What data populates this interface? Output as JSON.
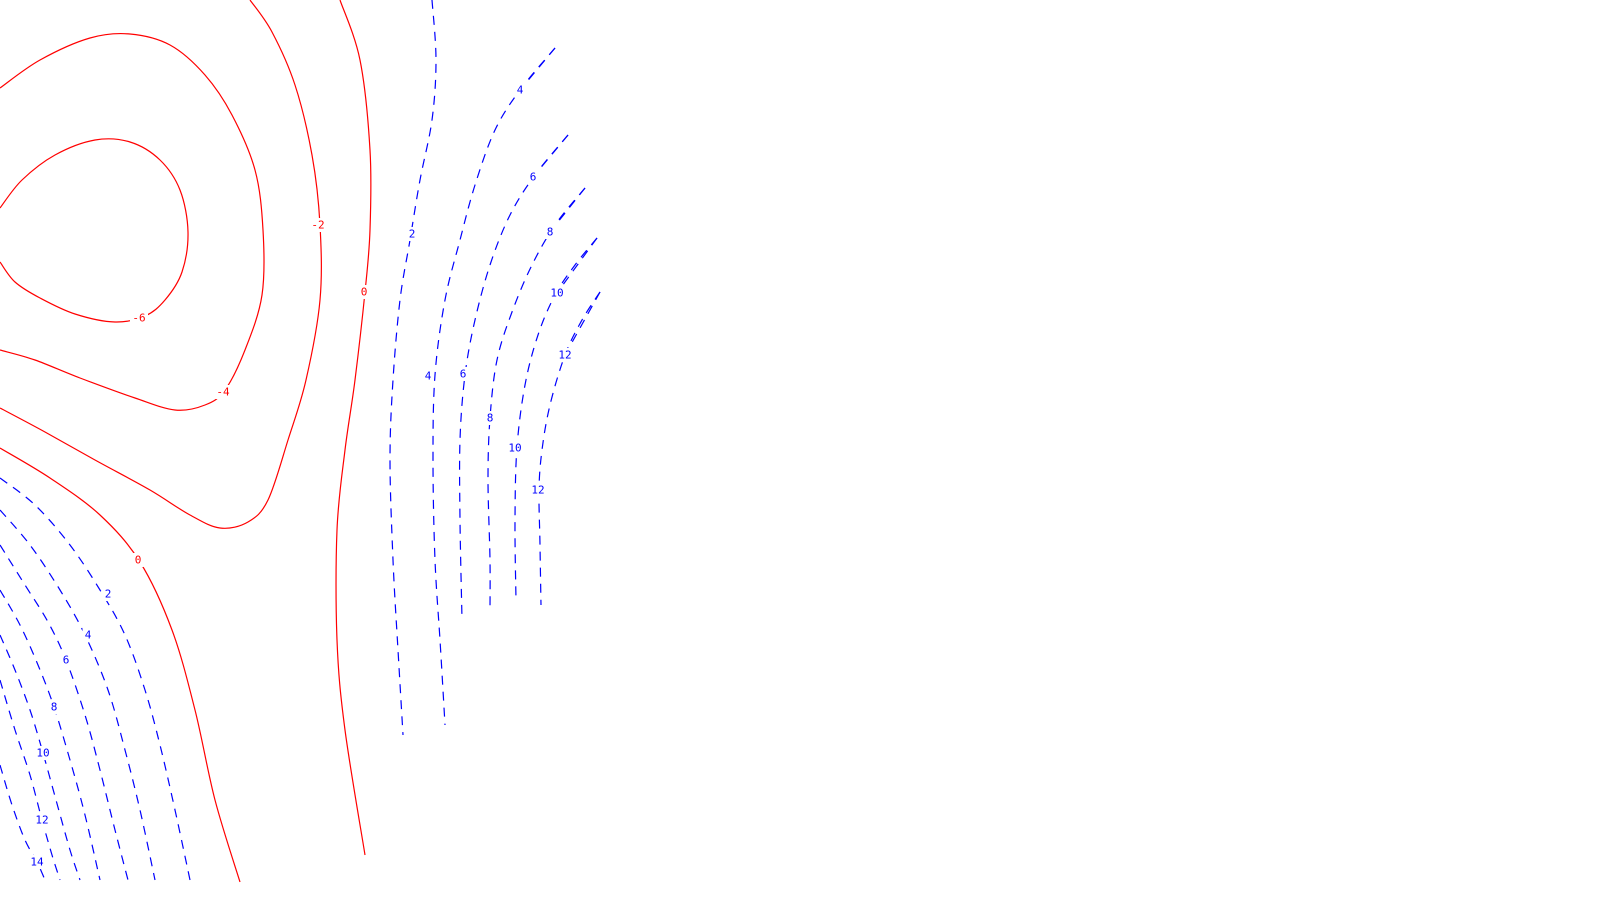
{
  "colors": {
    "negative": "#ff0000",
    "positive": "#0000ff",
    "background": "#ffffff"
  },
  "chart_data": {
    "type": "contour",
    "title": "",
    "xlabel": "",
    "ylabel": "",
    "grid": false,
    "legend": "none",
    "x_range": [
      0,
      1600
    ],
    "y_range": [
      0,
      900
    ],
    "contours": [
      {
        "level": -6,
        "label": "-6",
        "style": "solid",
        "color": "#ff0000",
        "points": [
          [
            0,
            208
          ],
          [
            22,
            180
          ],
          [
            55,
            155
          ],
          [
            95,
            140
          ],
          [
            130,
            142
          ],
          [
            160,
            160
          ],
          [
            180,
            190
          ],
          [
            188,
            232
          ],
          [
            182,
            272
          ],
          [
            165,
            300
          ],
          [
            145,
            316
          ],
          [
            115,
            322
          ],
          [
            75,
            314
          ],
          [
            40,
            298
          ],
          [
            15,
            282
          ],
          [
            0,
            262
          ]
        ],
        "label_at": [
          139,
          318
        ]
      },
      {
        "level": -4,
        "label": "-4",
        "style": "solid",
        "color": "#ff0000",
        "points": [
          [
            0,
            88
          ],
          [
            40,
            60
          ],
          [
            90,
            38
          ],
          [
            130,
            34
          ],
          [
            170,
            45
          ],
          [
            205,
            75
          ],
          [
            232,
            115
          ],
          [
            255,
            170
          ],
          [
            263,
            230
          ],
          [
            262,
            295
          ],
          [
            245,
            350
          ],
          [
            225,
            390
          ],
          [
            205,
            405
          ],
          [
            175,
            410
          ],
          [
            135,
            398
          ],
          [
            80,
            378
          ],
          [
            35,
            360
          ],
          [
            0,
            350
          ]
        ],
        "label_at": [
          223,
          392
        ]
      },
      {
        "level": -2,
        "label": "-2",
        "style": "solid",
        "color": "#ff0000",
        "points": [
          [
            250,
            0
          ],
          [
            272,
            32
          ],
          [
            295,
            85
          ],
          [
            312,
            155
          ],
          [
            320,
            225
          ],
          [
            320,
            300
          ],
          [
            306,
            380
          ],
          [
            288,
            440
          ],
          [
            268,
            500
          ],
          [
            248,
            522
          ],
          [
            220,
            528
          ],
          [
            190,
            515
          ],
          [
            150,
            490
          ],
          [
            95,
            460
          ],
          [
            45,
            432
          ],
          [
            0,
            408
          ]
        ],
        "label_at": [
          318,
          225
        ]
      },
      {
        "level": 0,
        "label": "0",
        "style": "solid",
        "color": "#ff0000",
        "points": [
          [
            340,
            0
          ],
          [
            360,
            60
          ],
          [
            370,
            150
          ],
          [
            370,
            230
          ],
          [
            365,
            292
          ],
          [
            355,
            380
          ],
          [
            345,
            450
          ],
          [
            337,
            530
          ],
          [
            337,
            640
          ],
          [
            345,
            730
          ],
          [
            365,
            855
          ]
        ],
        "label_at": [
          364,
          292
        ]
      },
      {
        "level": 0,
        "label": "0",
        "style": "solid",
        "color": "#ff0000",
        "points": [
          [
            0,
            448
          ],
          [
            50,
            478
          ],
          [
            100,
            515
          ],
          [
            140,
            562
          ],
          [
            172,
            630
          ],
          [
            195,
            710
          ],
          [
            215,
            800
          ],
          [
            240,
            882
          ]
        ],
        "label_at": [
          138,
          560
        ]
      },
      {
        "level": 2,
        "label": "2",
        "style": "dashed",
        "color": "#0000ff",
        "points": [
          [
            432,
            0
          ],
          [
            436,
            60
          ],
          [
            432,
            120
          ],
          [
            420,
            180
          ],
          [
            410,
            240
          ],
          [
            400,
            300
          ],
          [
            393,
            380
          ],
          [
            390,
            460
          ],
          [
            393,
            560
          ],
          [
            398,
            650
          ],
          [
            403,
            735
          ]
        ],
        "label_at": [
          412,
          234
        ]
      },
      {
        "level": 4,
        "label": "4",
        "style": "dashed",
        "color": "#0000ff",
        "points": [
          [
            555,
            48
          ],
          [
            520,
            90
          ],
          [
            495,
            130
          ],
          [
            475,
            185
          ],
          [
            460,
            240
          ],
          [
            445,
            300
          ],
          [
            435,
            375
          ],
          [
            433,
            460
          ],
          [
            435,
            560
          ],
          [
            440,
            640
          ],
          [
            445,
            725
          ]
        ],
        "label_at": [
          428,
          376
        ]
      },
      {
        "level": 4,
        "label": "4",
        "style": "dashed",
        "color": "#0000ff",
        "points": [
          [
            555,
            48
          ],
          [
            520,
            90
          ]
        ],
        "label_at": [
          520,
          90
        ]
      },
      {
        "level": 6,
        "label": "6",
        "style": "dashed",
        "color": "#0000ff",
        "points": [
          [
            568,
            135
          ],
          [
            535,
            175
          ],
          [
            510,
            215
          ],
          [
            490,
            265
          ],
          [
            475,
            320
          ],
          [
            465,
            375
          ],
          [
            460,
            440
          ],
          [
            460,
            520
          ],
          [
            462,
            620
          ]
        ],
        "label_at": [
          463,
          374
        ]
      },
      {
        "level": 6,
        "label": "6",
        "style": "dashed",
        "color": "#0000ff",
        "points": [
          [
            568,
            135
          ],
          [
            533,
            177
          ]
        ],
        "label_at": [
          533,
          177
        ]
      },
      {
        "level": 8,
        "label": "8",
        "style": "dashed",
        "color": "#0000ff",
        "points": [
          [
            585,
            188
          ],
          [
            555,
            225
          ],
          [
            532,
            265
          ],
          [
            512,
            312
          ],
          [
            497,
            360
          ],
          [
            490,
            418
          ],
          [
            488,
            480
          ],
          [
            490,
            560
          ],
          [
            490,
            608
          ]
        ],
        "label_at": [
          490,
          418
        ]
      },
      {
        "level": 8,
        "label": "8",
        "style": "dashed",
        "color": "#0000ff",
        "points": [
          [
            585,
            188
          ],
          [
            550,
            232
          ]
        ],
        "label_at": [
          550,
          232
        ]
      },
      {
        "level": 10,
        "label": "10",
        "style": "dashed",
        "color": "#0000ff",
        "points": [
          [
            597,
            238
          ],
          [
            575,
            265
          ],
          [
            555,
            295
          ],
          [
            538,
            335
          ],
          [
            525,
            385
          ],
          [
            517,
            447
          ],
          [
            515,
            520
          ],
          [
            516,
            600
          ]
        ],
        "label_at": [
          515,
          448
        ]
      },
      {
        "level": 10,
        "label": "10",
        "style": "dashed",
        "color": "#0000ff",
        "points": [
          [
            597,
            238
          ],
          [
            557,
            293
          ]
        ],
        "label_at": [
          557,
          293
        ]
      },
      {
        "level": 12,
        "label": "12",
        "style": "dashed",
        "color": "#0000ff",
        "points": [
          [
            600,
            292
          ],
          [
            582,
            320
          ],
          [
            565,
            355
          ],
          [
            550,
            405
          ],
          [
            542,
            450
          ],
          [
            539,
            490
          ],
          [
            540,
            545
          ],
          [
            541,
            605
          ]
        ],
        "label_at": [
          538,
          490
        ]
      },
      {
        "level": 12,
        "label": "12",
        "style": "dashed",
        "color": "#0000ff",
        "points": [
          [
            600,
            292
          ],
          [
            565,
            355
          ]
        ],
        "label_at": [
          565,
          355
        ]
      },
      {
        "level": 2,
        "label": "2",
        "style": "dashed",
        "color": "#0000ff",
        "points": [
          [
            0,
            478
          ],
          [
            35,
            505
          ],
          [
            70,
            545
          ],
          [
            100,
            590
          ],
          [
            125,
            635
          ],
          [
            145,
            690
          ],
          [
            160,
            745
          ],
          [
            175,
            810
          ],
          [
            190,
            880
          ]
        ],
        "label_at": [
          108,
          594
        ]
      },
      {
        "level": 4,
        "label": "4",
        "style": "dashed",
        "color": "#0000ff",
        "points": [
          [
            0,
            510
          ],
          [
            30,
            545
          ],
          [
            60,
            590
          ],
          [
            85,
            635
          ],
          [
            108,
            690
          ],
          [
            125,
            750
          ],
          [
            140,
            810
          ],
          [
            155,
            880
          ]
        ],
        "label_at": [
          88,
          635
        ]
      },
      {
        "level": 6,
        "label": "6",
        "style": "dashed",
        "color": "#0000ff",
        "points": [
          [
            0,
            545
          ],
          [
            25,
            585
          ],
          [
            48,
            622
          ],
          [
            66,
            660
          ],
          [
            85,
            715
          ],
          [
            100,
            770
          ],
          [
            115,
            830
          ],
          [
            128,
            880
          ]
        ],
        "label_at": [
          66,
          660
        ]
      },
      {
        "level": 8,
        "label": "8",
        "style": "dashed",
        "color": "#0000ff",
        "points": [
          [
            0,
            590
          ],
          [
            20,
            625
          ],
          [
            38,
            665
          ],
          [
            54,
            707
          ],
          [
            70,
            760
          ],
          [
            85,
            815
          ],
          [
            100,
            880
          ]
        ],
        "label_at": [
          54,
          707
        ]
      },
      {
        "level": 10,
        "label": "10",
        "style": "dashed",
        "color": "#0000ff",
        "points": [
          [
            0,
            635
          ],
          [
            15,
            670
          ],
          [
            30,
            710
          ],
          [
            43,
            753
          ],
          [
            56,
            800
          ],
          [
            70,
            850
          ],
          [
            80,
            880
          ]
        ],
        "label_at": [
          43,
          753
        ]
      },
      {
        "level": 12,
        "label": "12",
        "style": "dashed",
        "color": "#0000ff",
        "points": [
          [
            0,
            680
          ],
          [
            15,
            730
          ],
          [
            30,
            775
          ],
          [
            42,
            820
          ],
          [
            52,
            855
          ],
          [
            60,
            880
          ]
        ],
        "label_at": [
          42,
          820
        ]
      },
      {
        "level": 14,
        "label": "14",
        "style": "dashed",
        "color": "#0000ff",
        "points": [
          [
            0,
            765
          ],
          [
            12,
            805
          ],
          [
            25,
            840
          ],
          [
            37,
            862
          ],
          [
            45,
            880
          ]
        ],
        "label_at": [
          37,
          862
        ]
      }
    ]
  }
}
